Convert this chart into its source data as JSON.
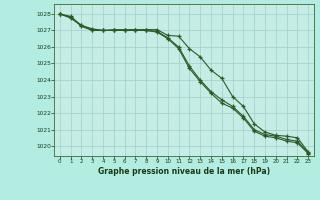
{
  "title": "Graphe pression niveau de la mer (hPa)",
  "background_color": "#b3ede2",
  "plot_bg_color": "#c5ede5",
  "grid_color": "#9ecfc7",
  "line_color": "#2d5a27",
  "ylim": [
    1019.4,
    1028.6
  ],
  "xlim": [
    -0.5,
    23.5
  ],
  "xticks": [
    0,
    1,
    2,
    3,
    4,
    5,
    6,
    7,
    8,
    9,
    10,
    11,
    12,
    13,
    14,
    15,
    16,
    17,
    18,
    19,
    20,
    21,
    22,
    23
  ],
  "yticks": [
    1020,
    1021,
    1022,
    1023,
    1024,
    1025,
    1026,
    1027,
    1028
  ],
  "series1": [
    1028.0,
    1027.85,
    1027.3,
    1027.05,
    1027.0,
    1027.05,
    1027.05,
    1027.05,
    1027.05,
    1027.05,
    1026.7,
    1026.65,
    1025.9,
    1025.4,
    1024.6,
    1024.1,
    1023.0,
    1022.4,
    1021.35,
    1020.85,
    1020.65,
    1020.6,
    1020.5,
    1019.65
  ],
  "series2": [
    1028.0,
    1027.75,
    1027.3,
    1027.1,
    1027.0,
    1027.0,
    1027.0,
    1027.0,
    1027.0,
    1026.95,
    1026.55,
    1026.0,
    1024.85,
    1024.0,
    1023.3,
    1022.8,
    1022.4,
    1021.8,
    1021.0,
    1020.7,
    1020.6,
    1020.4,
    1020.3,
    1019.6
  ],
  "series3": [
    1028.0,
    1027.8,
    1027.25,
    1027.0,
    1027.0,
    1027.0,
    1027.0,
    1027.0,
    1027.0,
    1026.9,
    1026.5,
    1025.9,
    1024.7,
    1023.9,
    1023.2,
    1022.6,
    1022.3,
    1021.7,
    1020.9,
    1020.6,
    1020.5,
    1020.3,
    1020.2,
    1019.55
  ]
}
